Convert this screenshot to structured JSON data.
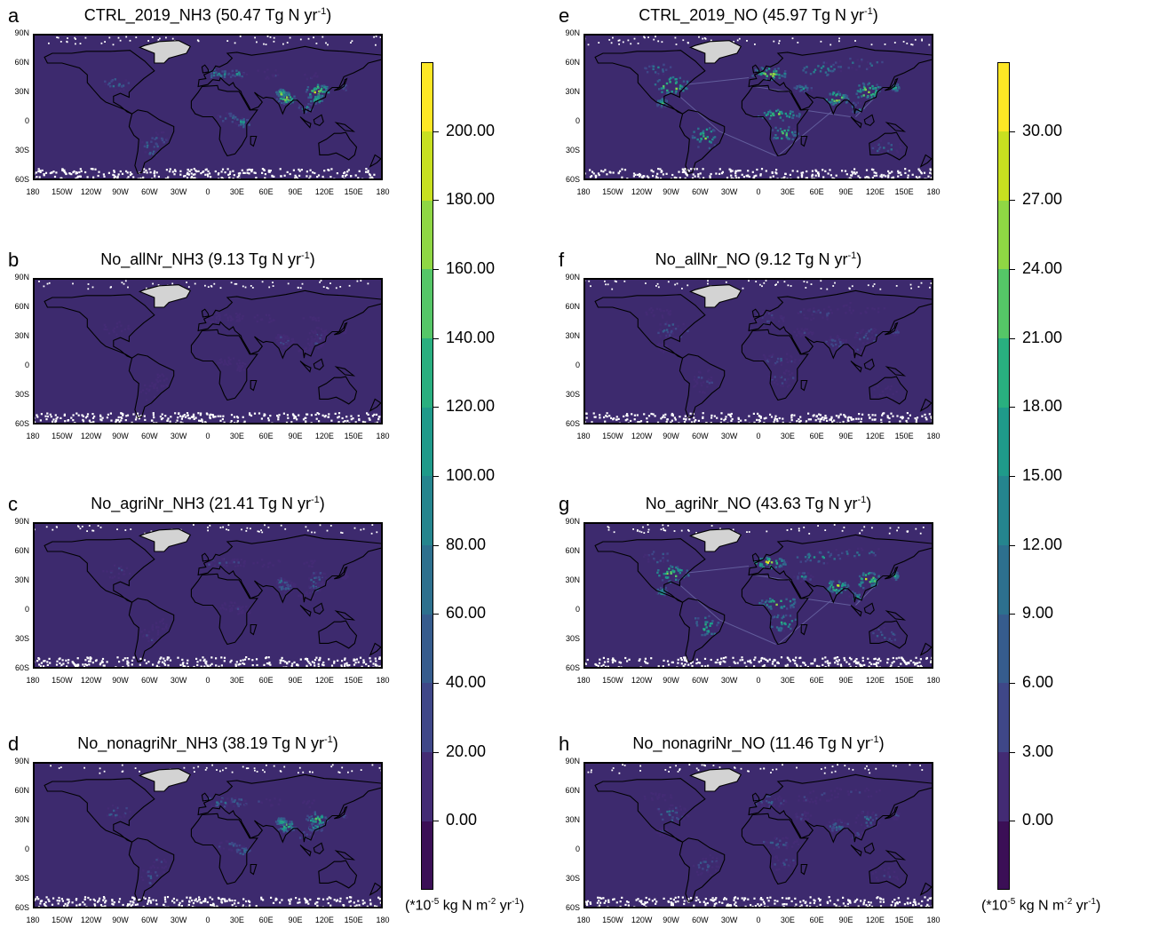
{
  "panels": [
    {
      "letter": "a",
      "name": "CTRL_2019_NH3",
      "value": "(50.47 Tg N yr",
      "exp": "-1",
      "close": ")",
      "species": "nh3",
      "intensity": 1.0
    },
    {
      "letter": "b",
      "name": "No_allNr_NH3",
      "value": "(9.13 Tg N yr",
      "exp": "-1",
      "close": ")",
      "species": "nh3",
      "intensity": 0.25
    },
    {
      "letter": "c",
      "name": "No_agriNr_NH3",
      "value": "(21.41 Tg N yr",
      "exp": "-1",
      "close": ")",
      "species": "nh3",
      "intensity": 0.45
    },
    {
      "letter": "d",
      "name": "No_nonagriNr_NH3",
      "value": "(38.19 Tg N yr",
      "exp": "-1",
      "close": ")",
      "species": "nh3",
      "intensity": 0.8
    },
    {
      "letter": "e",
      "name": "CTRL_2019_NO",
      "value": "(45.97 Tg N yr",
      "exp": "-1",
      "close": ")",
      "species": "no",
      "intensity": 1.0
    },
    {
      "letter": "f",
      "name": "No_allNr_NO",
      "value": "(9.12 Tg N yr",
      "exp": "-1",
      "close": ")",
      "species": "no",
      "intensity": 0.35
    },
    {
      "letter": "g",
      "name": "No_agriNr_NO",
      "value": "(43.63 Tg N yr",
      "exp": "-1",
      "close": ")",
      "species": "no",
      "intensity": 0.95
    },
    {
      "letter": "h",
      "name": "No_nonagriNr_NO",
      "value": "(11.46 Tg N yr",
      "exp": "-1",
      "close": ")",
      "species": "no",
      "intensity": 0.4
    }
  ],
  "lat_labels": [
    "90N",
    "60N",
    "30N",
    "0",
    "30S",
    "60S"
  ],
  "lon_labels": [
    "180",
    "150W",
    "120W",
    "90W",
    "60W",
    "30W",
    "0",
    "30E",
    "60E",
    "90E",
    "120E",
    "150E",
    "180"
  ],
  "colorbars": [
    {
      "id": "nh3",
      "labels": [
        "200.00",
        "180.00",
        "160.00",
        "140.00",
        "120.00",
        "100.00",
        "80.00",
        "60.00",
        "40.00",
        "20.00",
        "0.00"
      ],
      "unit_pre": "(*10",
      "unit_exp1": "-5",
      "unit_mid": " kg N m",
      "unit_exp2": "-2",
      "unit_mid2": " yr",
      "unit_exp3": "-1",
      "unit_post": ")"
    },
    {
      "id": "no",
      "labels": [
        "30.00",
        "27.00",
        "24.00",
        "21.00",
        "18.00",
        "15.00",
        "12.00",
        "9.00",
        "6.00",
        "3.00",
        "0.00"
      ],
      "unit_pre": "(*10",
      "unit_exp1": "-5",
      "unit_mid": " kg N m",
      "unit_exp2": "-2",
      "unit_mid2": " yr",
      "unit_exp3": "-1",
      "unit_post": ")"
    }
  ],
  "colors": {
    "ocean": "#3d2a6e",
    "greenland": "#d3d3d3",
    "scale": [
      "#3b0f56",
      "#432b74",
      "#3f4788",
      "#365c8d",
      "#2d708e",
      "#25858e",
      "#1f9a8a",
      "#29af7f",
      "#55c667",
      "#8fd744",
      "#c8e020",
      "#fde725"
    ]
  }
}
